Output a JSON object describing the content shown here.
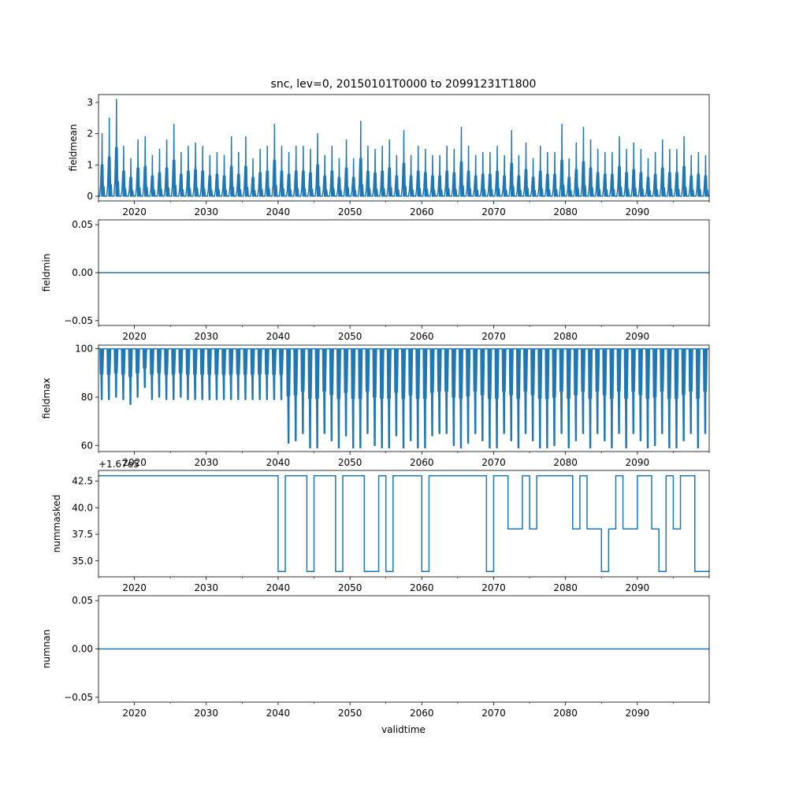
{
  "figure": {
    "title": "snc, lev=0, 20150101T0000 to 20991231T1800",
    "xlabel": "validtime",
    "line_color": "#1f77b4"
  },
  "chart_data": [
    {
      "type": "line",
      "name": "fieldmean",
      "ylabel": "fieldmean",
      "offset_text": "",
      "xlim": [
        2015,
        2100
      ],
      "ylim": [
        -0.15,
        3.25
      ],
      "xticks": [
        2020,
        2030,
        2040,
        2050,
        2060,
        2070,
        2080,
        2090
      ],
      "xtick_labels": [
        "2020",
        "2030",
        "2040",
        "2050",
        "2060",
        "2070",
        "2080",
        "2090"
      ],
      "yticks": [
        0,
        1,
        2,
        3
      ],
      "ytick_labels": [
        "0",
        "1",
        "2",
        "3"
      ],
      "series": [
        {
          "name": "fieldmean",
          "render": "seasonal_spikes",
          "baseline": 0.0,
          "x": [
            2015.5,
            2016.5,
            2017.5,
            2018.5,
            2019.5,
            2020.5,
            2021.5,
            2022.5,
            2023.5,
            2024.5,
            2025.5,
            2026.5,
            2027.5,
            2028.5,
            2029.5,
            2030.5,
            2031.5,
            2032.5,
            2033.5,
            2034.5,
            2035.5,
            2036.5,
            2037.5,
            2038.5,
            2039.5,
            2040.5,
            2041.5,
            2042.5,
            2043.5,
            2044.5,
            2045.5,
            2046.5,
            2047.5,
            2048.5,
            2049.5,
            2050.5,
            2051.5,
            2052.5,
            2053.5,
            2054.5,
            2055.5,
            2056.5,
            2057.5,
            2058.5,
            2059.5,
            2060.5,
            2061.5,
            2062.5,
            2063.5,
            2064.5,
            2065.5,
            2066.5,
            2067.5,
            2068.5,
            2069.5,
            2070.5,
            2071.5,
            2072.5,
            2073.5,
            2074.5,
            2075.5,
            2076.5,
            2077.5,
            2078.5,
            2079.5,
            2080.5,
            2081.5,
            2082.5,
            2083.5,
            2084.5,
            2085.5,
            2086.5,
            2087.5,
            2088.5,
            2089.5,
            2090.5,
            2091.5,
            2092.5,
            2093.5,
            2094.5,
            2095.5,
            2096.5,
            2097.5,
            2098.5,
            2099.5
          ],
          "values": [
            2.0,
            2.5,
            3.1,
            1.6,
            1.2,
            1.8,
            1.9,
            1.3,
            1.5,
            1.8,
            2.3,
            1.4,
            1.6,
            1.7,
            1.6,
            1.3,
            1.4,
            1.3,
            1.9,
            1.4,
            1.9,
            1.2,
            1.5,
            1.6,
            2.3,
            1.6,
            1.4,
            1.6,
            1.6,
            1.5,
            2.0,
            1.3,
            1.6,
            1.2,
            1.8,
            1.2,
            2.4,
            1.6,
            1.5,
            1.6,
            1.8,
            1.3,
            2.1,
            1.3,
            1.6,
            1.5,
            1.3,
            1.3,
            1.6,
            1.5,
            2.2,
            1.6,
            1.3,
            1.4,
            1.4,
            1.6,
            1.3,
            2.1,
            1.3,
            1.7,
            1.2,
            1.6,
            1.4,
            1.4,
            2.3,
            1.2,
            1.7,
            2.2,
            1.8,
            1.5,
            1.4,
            1.4,
            1.9,
            1.5,
            1.7,
            1.5,
            1.2,
            1.4,
            1.8,
            1.5,
            1.5,
            1.9,
            1.3,
            1.4,
            1.3
          ]
        }
      ]
    },
    {
      "type": "line",
      "name": "fieldmin",
      "ylabel": "fieldmin",
      "offset_text": "",
      "xlim": [
        2015,
        2100
      ],
      "ylim": [
        -0.055,
        0.055
      ],
      "xticks": [
        2020,
        2030,
        2040,
        2050,
        2060,
        2070,
        2080,
        2090
      ],
      "xtick_labels": [
        "2020",
        "2030",
        "2040",
        "2050",
        "2060",
        "2070",
        "2080",
        "2090"
      ],
      "yticks": [
        -0.05,
        0.0,
        0.05
      ],
      "ytick_labels": [
        "−0.05",
        "0.00",
        "0.05"
      ],
      "series": [
        {
          "name": "fieldmin",
          "render": "constant",
          "value": 0.0
        }
      ]
    },
    {
      "type": "line",
      "name": "fieldmax",
      "ylabel": "fieldmax",
      "offset_text": "",
      "xlim": [
        2015,
        2100
      ],
      "ylim": [
        57.5,
        101.5
      ],
      "xticks": [
        2020,
        2030,
        2040,
        2050,
        2060,
        2070,
        2080,
        2090
      ],
      "xtick_labels": [
        "2020",
        "2030",
        "2040",
        "2050",
        "2060",
        "2070",
        "2080",
        "2090"
      ],
      "yticks": [
        60,
        80,
        100
      ],
      "ytick_labels": [
        "60",
        "80",
        "100"
      ],
      "series": [
        {
          "name": "fieldmax",
          "render": "seasonal_dips",
          "top": 100,
          "x": [
            2015.5,
            2016.5,
            2017.5,
            2018.5,
            2019.5,
            2020.5,
            2021.5,
            2022.5,
            2023.5,
            2024.5,
            2025.5,
            2026.5,
            2027.5,
            2028.5,
            2029.5,
            2030.5,
            2031.5,
            2032.5,
            2033.5,
            2034.5,
            2035.5,
            2036.5,
            2037.5,
            2038.5,
            2039.5,
            2040.5,
            2041.5,
            2042.5,
            2043.5,
            2044.5,
            2045.5,
            2046.5,
            2047.5,
            2048.5,
            2049.5,
            2050.5,
            2051.5,
            2052.5,
            2053.5,
            2054.5,
            2055.5,
            2056.5,
            2057.5,
            2058.5,
            2059.5,
            2060.5,
            2061.5,
            2062.5,
            2063.5,
            2064.5,
            2065.5,
            2066.5,
            2067.5,
            2068.5,
            2069.5,
            2070.5,
            2071.5,
            2072.5,
            2073.5,
            2074.5,
            2075.5,
            2076.5,
            2077.5,
            2078.5,
            2079.5,
            2080.5,
            2081.5,
            2082.5,
            2083.5,
            2084.5,
            2085.5,
            2086.5,
            2087.5,
            2088.5,
            2089.5,
            2090.5,
            2091.5,
            2092.5,
            2093.5,
            2094.5,
            2095.5,
            2096.5,
            2097.5,
            2098.5,
            2099.5
          ],
          "values": [
            79,
            79,
            80,
            79,
            77,
            80,
            84,
            79,
            80,
            79,
            79,
            80,
            79,
            79,
            79,
            79,
            79,
            79,
            79,
            79,
            79,
            79,
            79,
            79,
            79,
            79,
            61,
            62,
            65,
            59,
            59,
            65,
            62,
            59,
            64,
            59,
            59,
            65,
            60,
            59,
            59,
            64,
            59,
            62,
            59,
            59,
            64,
            65,
            65,
            60,
            59,
            61,
            65,
            62,
            59,
            59,
            65,
            62,
            59,
            65,
            62,
            59,
            59,
            60,
            65,
            59,
            62,
            65,
            59,
            65,
            62,
            59,
            65,
            59,
            65,
            62,
            59,
            60,
            65,
            59,
            59,
            62,
            65,
            59,
            65
          ]
        }
      ]
    },
    {
      "type": "line",
      "name": "nummasked",
      "ylabel": "nummasked",
      "offset_text": "+1.67e5",
      "xlim": [
        2015,
        2100
      ],
      "ylim": [
        33.5,
        43.5
      ],
      "xticks": [
        2020,
        2030,
        2040,
        2050,
        2060,
        2070,
        2080,
        2090
      ],
      "xtick_labels": [
        "2020",
        "2030",
        "2040",
        "2050",
        "2060",
        "2070",
        "2080",
        "2090"
      ],
      "yticks": [
        35.0,
        37.5,
        40.0,
        42.5
      ],
      "ytick_labels": [
        "35.0",
        "37.5",
        "40.0",
        "42.5"
      ],
      "series": [
        {
          "name": "nummasked",
          "render": "step",
          "x": [
            2015.0,
            2040.0,
            2041.0,
            2044.0,
            2045.0,
            2048.0,
            2049.0,
            2052.0,
            2054.0,
            2055.0,
            2056.0,
            2060.0,
            2061.0,
            2069.0,
            2070.0,
            2072.0,
            2074.0,
            2075.0,
            2076.0,
            2081.0,
            2082.0,
            2083.0,
            2085.0,
            2086.0,
            2087.0,
            2088.0,
            2090.0,
            2092.0,
            2093.0,
            2094.0,
            2095.0,
            2096.0,
            2098.0,
            2099.0,
            2100.0
          ],
          "values": [
            43,
            34,
            43,
            34,
            43,
            34,
            43,
            34,
            43,
            34,
            43,
            34,
            43,
            34,
            43,
            38,
            43,
            38,
            43,
            38,
            43,
            38,
            34,
            38,
            43,
            38,
            43,
            38,
            34,
            43,
            38,
            43,
            34,
            34,
            34
          ]
        }
      ]
    },
    {
      "type": "line",
      "name": "numnan",
      "ylabel": "numnan",
      "offset_text": "",
      "xlim": [
        2015,
        2100
      ],
      "ylim": [
        -0.055,
        0.055
      ],
      "xticks": [
        2020,
        2030,
        2040,
        2050,
        2060,
        2070,
        2080,
        2090
      ],
      "xtick_labels": [
        "2020",
        "2030",
        "2040",
        "2050",
        "2060",
        "2070",
        "2080",
        "2090"
      ],
      "yticks": [
        -0.05,
        0.0,
        0.05
      ],
      "ytick_labels": [
        "−0.05",
        "0.00",
        "0.05"
      ],
      "series": [
        {
          "name": "numnan",
          "render": "constant",
          "value": 0.0
        }
      ]
    }
  ]
}
